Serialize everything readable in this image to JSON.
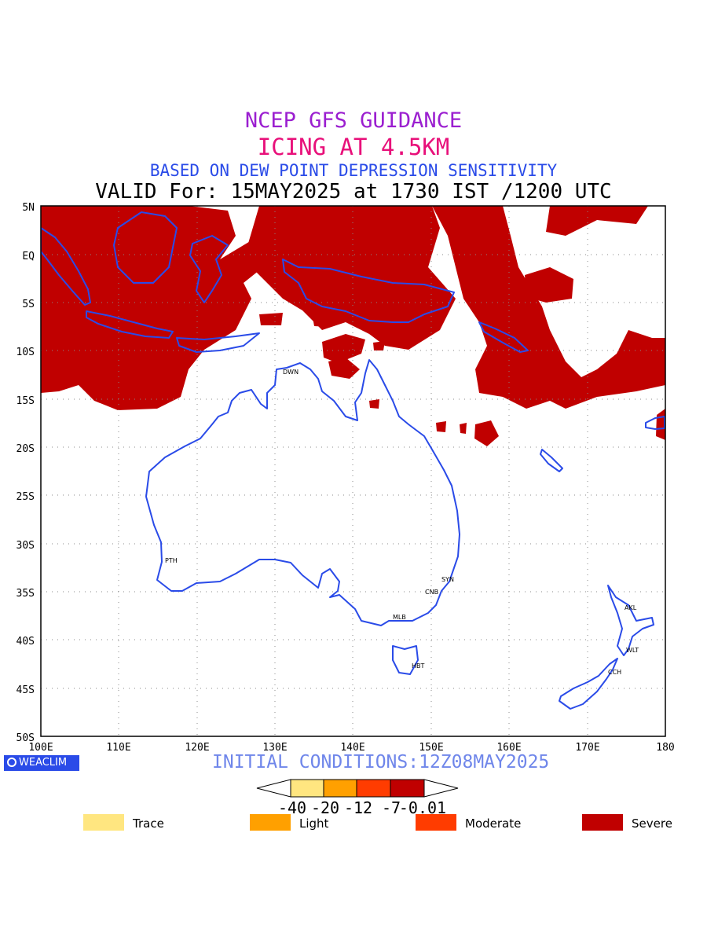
{
  "header": {
    "line1": "NCEP GFS GUIDANCE",
    "line2": "ICING AT 4.5KM",
    "line3": "BASED ON DEW POINT DEPRESSION SENSITIVITY",
    "line4": "VALID For: 15MAY2025 at 1730 IST /1200 UTC"
  },
  "map": {
    "lat_labels": [
      "5N",
      "EQ",
      "5S",
      "10S",
      "15S",
      "20S",
      "25S",
      "30S",
      "35S",
      "40S",
      "45S",
      "50S"
    ],
    "lon_labels": [
      "100E",
      "110E",
      "120E",
      "130E",
      "140E",
      "150E",
      "160E",
      "170E",
      "180"
    ],
    "cities": [
      {
        "name": "DWN"
      },
      {
        "name": "PTH"
      },
      {
        "name": "SYN"
      },
      {
        "name": "CNB"
      },
      {
        "name": "MLB"
      },
      {
        "name": "HBT"
      },
      {
        "name": "AKL"
      },
      {
        "name": "WLT"
      },
      {
        "name": "CCH"
      }
    ],
    "colors": {
      "coast": "#2a4be8",
      "grid": "#888888",
      "severe": "#c00000"
    }
  },
  "footer": {
    "logo_text": "WEACLIM",
    "initial_conditions": "INITIAL CONDITIONS:12Z08MAY2025"
  },
  "colorbar": {
    "ticks": [
      "-40",
      "-20",
      "-12",
      "-7",
      "-0.01"
    ],
    "colors": [
      "#ffe680",
      "#ffa000",
      "#ff3c00",
      "#c00000"
    ]
  },
  "legend": [
    {
      "label": "Trace",
      "color": "#ffe680"
    },
    {
      "label": "Light",
      "color": "#ffa000"
    },
    {
      "label": "Moderate",
      "color": "#ff3c00"
    },
    {
      "label": "Severe",
      "color": "#c00000"
    }
  ]
}
